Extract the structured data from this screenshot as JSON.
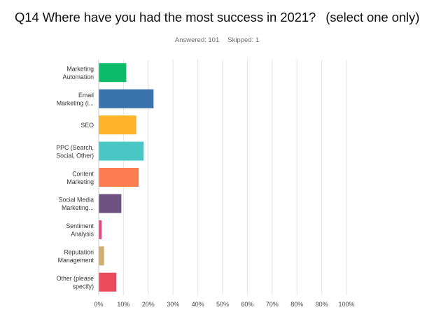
{
  "question": {
    "title": "Q14 Where have you had the most success in 2021?",
    "qualifier": "(select one only)",
    "answered": "Answered: 101",
    "skipped": "Skipped: 1"
  },
  "chart_data": {
    "type": "bar",
    "orientation": "horizontal",
    "categories": [
      [
        "Marketing",
        "Automation"
      ],
      [
        "Email",
        "Marketing (i..."
      ],
      [
        "SEO"
      ],
      [
        "PPC (Search,",
        "Social, Other)"
      ],
      [
        "Content",
        "Marketing"
      ],
      [
        "Social Media",
        "Marketing..."
      ],
      [
        "Sentiment",
        "Analysis"
      ],
      [
        "Reputation",
        "Management"
      ],
      [
        "Other (please",
        "specify)"
      ]
    ],
    "values": [
      11,
      22,
      15,
      18,
      16,
      9,
      1,
      2,
      7
    ],
    "colors": [
      "#0cbb6a",
      "#3a73ab",
      "#fdb32b",
      "#4ac7c4",
      "#fb7d50",
      "#6e5181",
      "#e4477a",
      "#cfae6f",
      "#ea4a5a"
    ],
    "xlim": [
      0,
      100
    ],
    "xticks": [
      "0%",
      "10%",
      "20%",
      "30%",
      "40%",
      "50%",
      "60%",
      "70%",
      "80%",
      "90%",
      "100%"
    ],
    "grid": true
  }
}
